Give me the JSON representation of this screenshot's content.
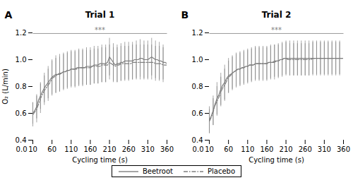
{
  "chart_data": [
    {
      "type": "line",
      "title": "Trial 1",
      "panel_label": "A",
      "xlabel": "Cycling time (s)",
      "ylabel": "O₂ (L/min)",
      "xlim": [
        10,
        360
      ],
      "xticks": [
        10,
        60,
        110,
        160,
        210,
        260,
        310,
        360
      ],
      "ylim": [
        0.4,
        1.2
      ],
      "yticks": [
        0.4,
        0.6,
        0.8,
        {
          "value": 1.0,
          "label": "1.0"
        },
        1.2
      ],
      "legend": "bottom",
      "color": "#7f7f7f",
      "annotations": [
        {
          "text": "***",
          "x": [
            10,
            360
          ],
          "y": 1.195
        },
        {
          "text": "0.0"
        }
      ],
      "x": [
        10,
        15,
        20,
        25,
        30,
        35,
        40,
        45,
        50,
        55,
        60,
        65,
        70,
        75,
        80,
        85,
        90,
        95,
        100,
        105,
        110,
        115,
        120,
        125,
        130,
        135,
        140,
        145,
        150,
        155,
        160,
        165,
        170,
        175,
        180,
        185,
        190,
        195,
        200,
        205,
        210,
        215,
        220,
        225,
        230,
        235,
        240,
        245,
        250,
        255,
        260,
        265,
        270,
        275,
        280,
        285,
        290,
        295,
        300,
        305,
        310,
        315,
        320,
        325,
        330,
        335,
        340,
        345,
        350,
        355,
        360
      ],
      "series": [
        {
          "name": "Beetroot",
          "color": "#7f7f7f",
          "line_style": "solid",
          "values": [
            0.6,
            0.62,
            0.65,
            0.7,
            0.73,
            0.76,
            0.79,
            0.81,
            0.83,
            0.85,
            0.87,
            0.88,
            0.89,
            0.89,
            0.9,
            0.9,
            0.91,
            0.91,
            0.92,
            0.92,
            0.93,
            0.93,
            0.93,
            0.94,
            0.94,
            0.94,
            0.94,
            0.94,
            0.95,
            0.95,
            0.95,
            0.95,
            0.96,
            0.96,
            0.96,
            0.97,
            0.97,
            0.97,
            0.97,
            0.98,
            1.02,
            1.0,
            0.98,
            0.96,
            0.97,
            0.97,
            0.98,
            0.98,
            0.99,
            0.99,
            0.99,
            0.99,
            0.99,
            1.0,
            1.0,
            1.0,
            1.01,
            1.01,
            1.0,
            1.0,
            1.0,
            1.01,
            1.02,
            1.01,
            1.0,
            1.0,
            0.99,
            0.99,
            0.98,
            0.98,
            0.97
          ],
          "errors": [
            0.08,
            null,
            0.09,
            null,
            0.1,
            null,
            0.11,
            null,
            0.12,
            null,
            0.13,
            null,
            0.14,
            null,
            0.14,
            null,
            0.14,
            null,
            0.14,
            null,
            0.14,
            null,
            0.14,
            null,
            0.14,
            null,
            0.14,
            null,
            0.14,
            null,
            0.14,
            null,
            0.14,
            null,
            0.14,
            null,
            0.14,
            null,
            0.14,
            null,
            0.14,
            null,
            0.14,
            null,
            0.14,
            null,
            0.14,
            null,
            0.14,
            null,
            0.14,
            null,
            0.14,
            null,
            0.14,
            null,
            0.14,
            null,
            0.14,
            null,
            0.14,
            null,
            0.14,
            null,
            0.14,
            null,
            0.14,
            null,
            0.13
          ]
        },
        {
          "name": "Placebo",
          "color": "#7f7f7f",
          "line_style": "dashdot",
          "values": [
            0.59,
            0.61,
            0.63,
            0.67,
            0.71,
            0.74,
            0.77,
            0.79,
            0.81,
            0.83,
            0.86,
            0.87,
            0.88,
            0.89,
            0.89,
            0.9,
            0.91,
            0.91,
            0.92,
            0.92,
            0.93,
            0.93,
            0.93,
            0.93,
            0.94,
            0.94,
            0.94,
            0.94,
            0.94,
            0.94,
            0.94,
            0.95,
            0.95,
            0.95,
            0.95,
            0.95,
            0.96,
            0.96,
            0.96,
            0.96,
            0.98,
            0.97,
            0.96,
            0.95,
            0.96,
            0.96,
            0.97,
            0.97,
            0.97,
            0.97,
            0.97,
            0.97,
            0.98,
            0.98,
            0.98,
            0.98,
            0.98,
            0.98,
            0.98,
            0.98,
            0.98,
            0.98,
            0.98,
            0.98,
            0.97,
            0.97,
            0.97,
            0.97,
            0.96,
            0.96,
            0.96
          ],
          "errors": [
            0.09,
            null,
            0.1,
            null,
            0.11,
            null,
            0.11,
            null,
            0.12,
            null,
            0.13,
            null,
            0.13,
            null,
            0.13,
            null,
            0.13,
            null,
            0.13,
            null,
            0.13,
            null,
            0.13,
            null,
            0.13,
            null,
            0.13,
            null,
            0.13,
            null,
            0.13,
            null,
            0.13,
            null,
            0.13,
            null,
            0.13,
            null,
            0.13,
            null,
            0.13,
            null,
            0.13,
            null,
            0.13,
            null,
            0.13,
            null,
            0.13,
            null,
            0.13,
            null,
            0.13,
            null,
            0.13,
            null,
            0.13,
            null,
            0.13,
            null,
            0.13,
            null,
            0.13,
            null,
            0.13,
            null,
            0.13,
            null,
            0.13,
            null,
            0.12
          ]
        }
      ]
    },
    {
      "type": "line",
      "title": "Trial 2",
      "panel_label": "B",
      "xlabel": "Cycling time (s)",
      "xlim": [
        10,
        360
      ],
      "xticks": [
        10,
        60,
        110,
        160,
        210,
        260,
        310,
        360
      ],
      "ylim": [
        0.4,
        1.2
      ],
      "yticks": [
        0.4,
        0.6,
        0.8,
        {
          "value": 1.0,
          "label": "1.0"
        },
        1.2
      ],
      "legend": "bottom",
      "color": "#7f7f7f",
      "annotations": [
        {
          "text": "***",
          "x": [
            10,
            360
          ],
          "y": 1.195
        },
        {
          "text": "0.0"
        }
      ],
      "x": [
        10,
        15,
        20,
        25,
        30,
        35,
        40,
        45,
        50,
        55,
        60,
        65,
        70,
        75,
        80,
        85,
        90,
        95,
        100,
        105,
        110,
        115,
        120,
        125,
        130,
        135,
        140,
        145,
        150,
        155,
        160,
        165,
        170,
        175,
        180,
        185,
        190,
        195,
        200,
        205,
        210,
        215,
        220,
        225,
        230,
        235,
        240,
        245,
        250,
        255,
        260,
        265,
        270,
        275,
        280,
        285,
        290,
        295,
        300,
        305,
        310,
        315,
        320,
        325,
        330,
        335,
        340,
        345,
        350,
        355,
        360
      ],
      "series": [
        {
          "name": "Beetroot",
          "color": "#7f7f7f",
          "line_style": "solid",
          "values": [
            0.55,
            0.58,
            0.62,
            0.67,
            0.71,
            0.74,
            0.78,
            0.81,
            0.83,
            0.86,
            0.88,
            0.89,
            0.9,
            0.91,
            0.92,
            0.93,
            0.93,
            0.94,
            0.94,
            0.95,
            0.95,
            0.96,
            0.96,
            0.96,
            0.97,
            0.97,
            0.97,
            0.97,
            0.97,
            0.97,
            0.97,
            0.98,
            0.98,
            0.98,
            0.98,
            0.99,
            0.99,
            1.0,
            1.0,
            1.01,
            1.01,
            1.01,
            1.01,
            1.01,
            1.01,
            1.01,
            1.01,
            1.01,
            1.01,
            1.01,
            1.01,
            1.01,
            1.01,
            1.01,
            1.01,
            1.01,
            1.01,
            1.01,
            1.01,
            1.01,
            1.01,
            1.01,
            1.01,
            1.01,
            1.01,
            1.01,
            1.01,
            1.01,
            1.01,
            1.01,
            1.01
          ],
          "errors": [
            0.1,
            null,
            0.11,
            null,
            0.12,
            null,
            0.12,
            null,
            0.13,
            null,
            0.13,
            null,
            0.13,
            null,
            0.13,
            null,
            0.13,
            null,
            0.13,
            null,
            0.13,
            null,
            0.13,
            null,
            0.13,
            null,
            0.13,
            null,
            0.13,
            null,
            0.13,
            null,
            0.13,
            null,
            0.13,
            null,
            0.13,
            null,
            0.13,
            null,
            0.13,
            null,
            0.13,
            null,
            0.13,
            null,
            0.13,
            null,
            0.13,
            null,
            0.13,
            null,
            0.13,
            null,
            0.13,
            null,
            0.13,
            null,
            0.13,
            null,
            0.13,
            null,
            0.13,
            null,
            0.13,
            null,
            0.13,
            null,
            0.13
          ]
        },
        {
          "name": "Placebo",
          "color": "#7f7f7f",
          "line_style": "dashdot",
          "values": [
            0.54,
            0.57,
            0.61,
            0.66,
            0.69,
            0.72,
            0.76,
            0.79,
            0.81,
            0.84,
            0.87,
            0.88,
            0.9,
            0.91,
            0.92,
            0.93,
            0.93,
            0.94,
            0.94,
            0.95,
            0.95,
            0.96,
            0.96,
            0.96,
            0.97,
            0.97,
            0.97,
            0.97,
            0.97,
            0.97,
            0.97,
            0.98,
            0.98,
            0.98,
            0.99,
            0.99,
            0.99,
            1.0,
            1.0,
            1.01,
            1.01,
            1.0,
            1.0,
            1.0,
            1.0,
            1.0,
            1.0,
            1.0,
            1.0,
            1.0,
            1.0,
            1.0,
            1.0,
            1.0,
            1.01,
            1.01,
            1.01,
            1.01,
            1.01,
            1.01,
            1.01,
            1.01,
            1.01,
            1.01,
            1.01,
            1.01,
            1.01,
            1.01,
            1.01,
            1.01,
            1.01
          ],
          "errors": [
            0.09,
            null,
            0.1,
            null,
            0.11,
            null,
            0.11,
            null,
            0.12,
            null,
            0.12,
            null,
            0.12,
            null,
            0.12,
            null,
            0.12,
            null,
            0.12,
            null,
            0.12,
            null,
            0.12,
            null,
            0.12,
            null,
            0.12,
            null,
            0.12,
            null,
            0.12,
            null,
            0.12,
            null,
            0.12,
            null,
            0.12,
            null,
            0.12,
            null,
            0.12,
            null,
            0.12,
            null,
            0.12,
            null,
            0.12,
            null,
            0.12,
            null,
            0.12,
            null,
            0.12,
            null,
            0.12,
            null,
            0.12,
            null,
            0.12,
            null,
            0.12,
            null,
            0.12,
            null,
            0.12,
            null,
            0.12,
            null,
            0.12
          ]
        }
      ]
    }
  ]
}
